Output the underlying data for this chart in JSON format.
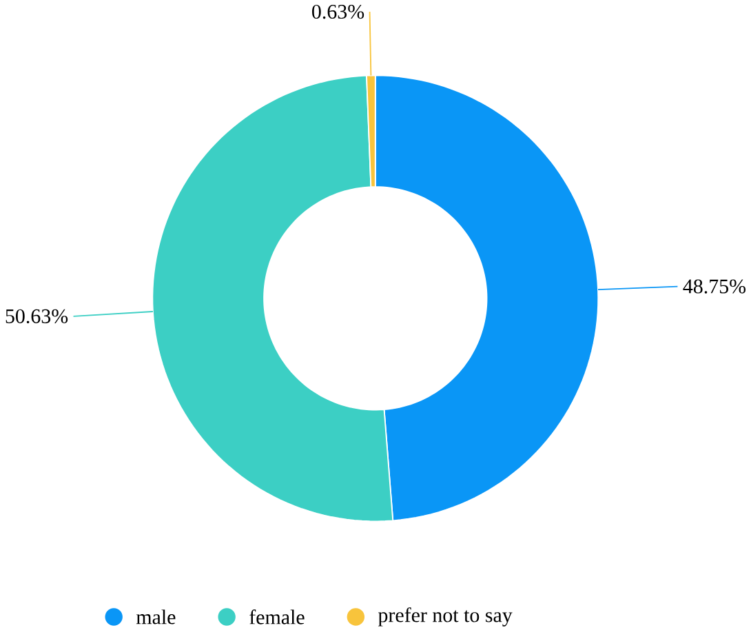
{
  "chart_data": {
    "type": "donut",
    "categories": [
      "male",
      "female",
      "prefer not to say"
    ],
    "values": [
      48.75,
      50.63,
      0.63
    ],
    "colors": [
      "#0a96f6",
      "#3ccfc4",
      "#f8c43c"
    ],
    "value_labels": [
      "48.75%",
      "50.63%",
      "0.63%"
    ],
    "legend": "bottom"
  }
}
